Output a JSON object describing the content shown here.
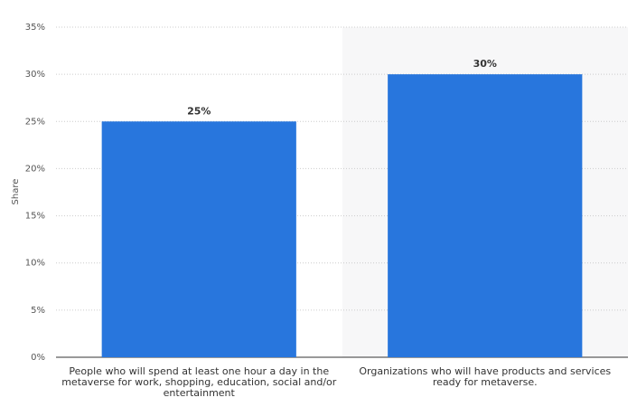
{
  "chart_data": {
    "type": "bar",
    "y_label": "Share",
    "categories": [
      "People who will spend at least one hour a day in the metaverse for work, shopping, education, social and/or entertainment",
      "Organizations who will have products and services ready for metaverse."
    ],
    "values": [
      25,
      30
    ],
    "value_labels": [
      "25%",
      "30%"
    ],
    "color": "#2876dd",
    "ylim": [
      0,
      35
    ],
    "yticks": [
      {
        "value": 0,
        "label": "0%"
      },
      {
        "value": 5,
        "label": "5%"
      },
      {
        "value": 10,
        "label": "10%"
      },
      {
        "value": 15,
        "label": "15%"
      },
      {
        "value": 20,
        "label": "20%"
      },
      {
        "value": 25,
        "label": "25%"
      },
      {
        "value": 30,
        "label": "30%"
      },
      {
        "value": 35,
        "label": "35%"
      }
    ],
    "grid": true
  }
}
